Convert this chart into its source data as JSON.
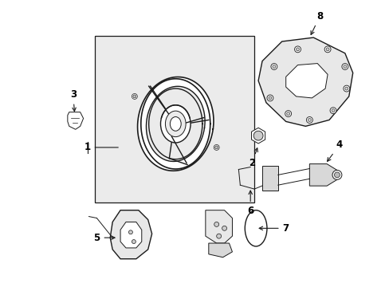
{
  "background_color": "#ffffff",
  "line_color": "#1a1a1a",
  "label_color": "#000000",
  "fig_width": 4.89,
  "fig_height": 3.6,
  "dpi": 100,
  "box_fill": "#ebebeb",
  "part_fill": "#e8e8e8",
  "part_fill2": "#d8d8d8"
}
